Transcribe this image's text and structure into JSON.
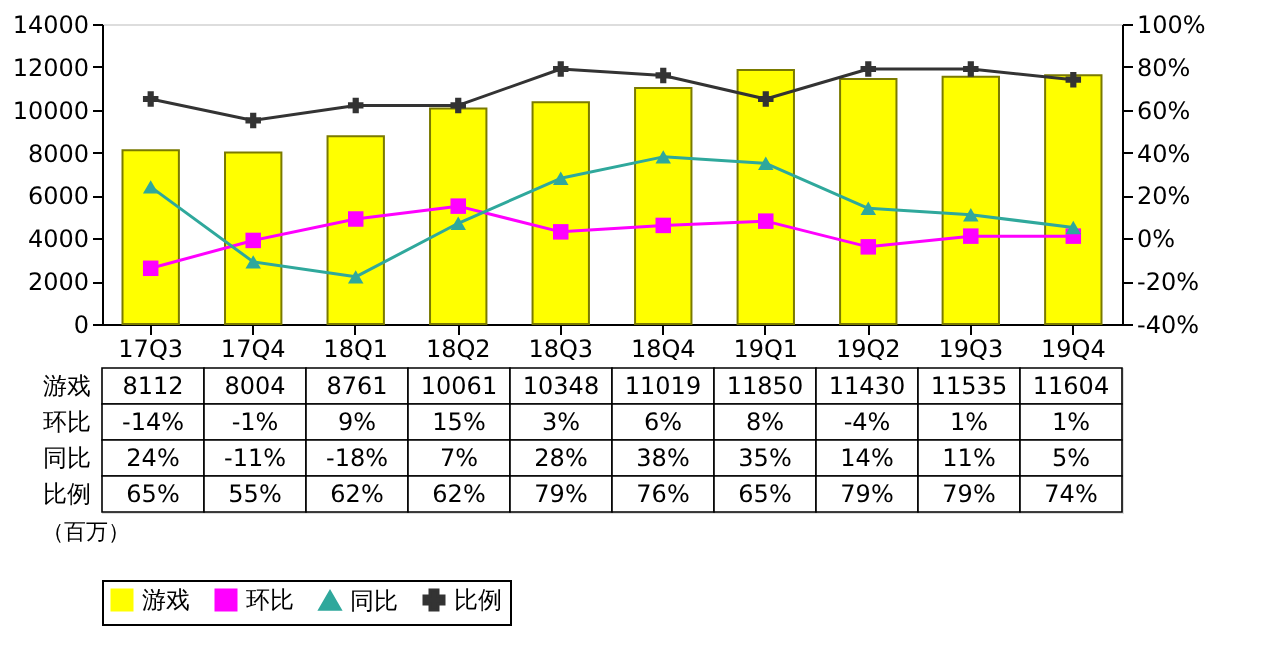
{
  "chart_data": {
    "type": "bar",
    "categories": [
      "17Q3",
      "17Q4",
      "18Q1",
      "18Q2",
      "18Q3",
      "18Q4",
      "19Q1",
      "19Q2",
      "19Q3",
      "19Q4"
    ],
    "series": [
      {
        "name": "游戏",
        "color": "#ffff00",
        "values": [
          8112,
          8004,
          8761,
          10061,
          10348,
          11019,
          11850,
          11430,
          11535,
          11604
        ],
        "value_labels": [
          "8112",
          "8004",
          "8761",
          "10061",
          "10348",
          "11019",
          "11850",
          "11430",
          "11535",
          "11604"
        ]
      },
      {
        "name": "环比",
        "type": "line",
        "axis": "y2",
        "marker": "square",
        "color": "#ff00ff",
        "values": [
          -14,
          -1,
          9,
          15,
          3,
          6,
          8,
          -4,
          1,
          1
        ],
        "value_labels": [
          "-14%",
          "-1%",
          "9%",
          "15%",
          "3%",
          "6%",
          "8%",
          "-4%",
          "1%",
          "1%"
        ]
      },
      {
        "name": "同比",
        "type": "line",
        "axis": "y2",
        "marker": "triangle",
        "color": "#2fa89c",
        "values": [
          24,
          -11,
          -18,
          7,
          28,
          38,
          35,
          14,
          11,
          5
        ],
        "value_labels": [
          "24%",
          "-11%",
          "-18%",
          "7%",
          "28%",
          "38%",
          "35%",
          "14%",
          "11%",
          "5%"
        ]
      },
      {
        "name": "比例",
        "type": "line",
        "axis": "y2",
        "marker": "cross",
        "color": "#333333",
        "values": [
          65,
          55,
          62,
          62,
          79,
          76,
          65,
          79,
          79,
          74
        ],
        "value_labels": [
          "65%",
          "55%",
          "62%",
          "62%",
          "79%",
          "76%",
          "65%",
          "79%",
          "79%",
          "74%"
        ]
      }
    ],
    "ylim": [
      0,
      14000
    ],
    "yticks": [
      0,
      2000,
      4000,
      6000,
      8000,
      10000,
      12000,
      14000
    ],
    "y2lim": [
      -40,
      100
    ],
    "y2ticks": [
      {
        "value": -40,
        "label": "-40%"
      },
      {
        "value": -20,
        "label": "-20%"
      },
      {
        "value": 0,
        "label": "0%"
      },
      {
        "value": 20,
        "label": "20%"
      },
      {
        "value": 40,
        "label": "40%"
      },
      {
        "value": 60,
        "label": "60%"
      },
      {
        "value": 80,
        "label": "80%"
      },
      {
        "value": 100,
        "label": "100%"
      }
    ],
    "legend": "bottom",
    "line_style": "solid",
    "annotations": [
      "（百万）"
    ]
  }
}
